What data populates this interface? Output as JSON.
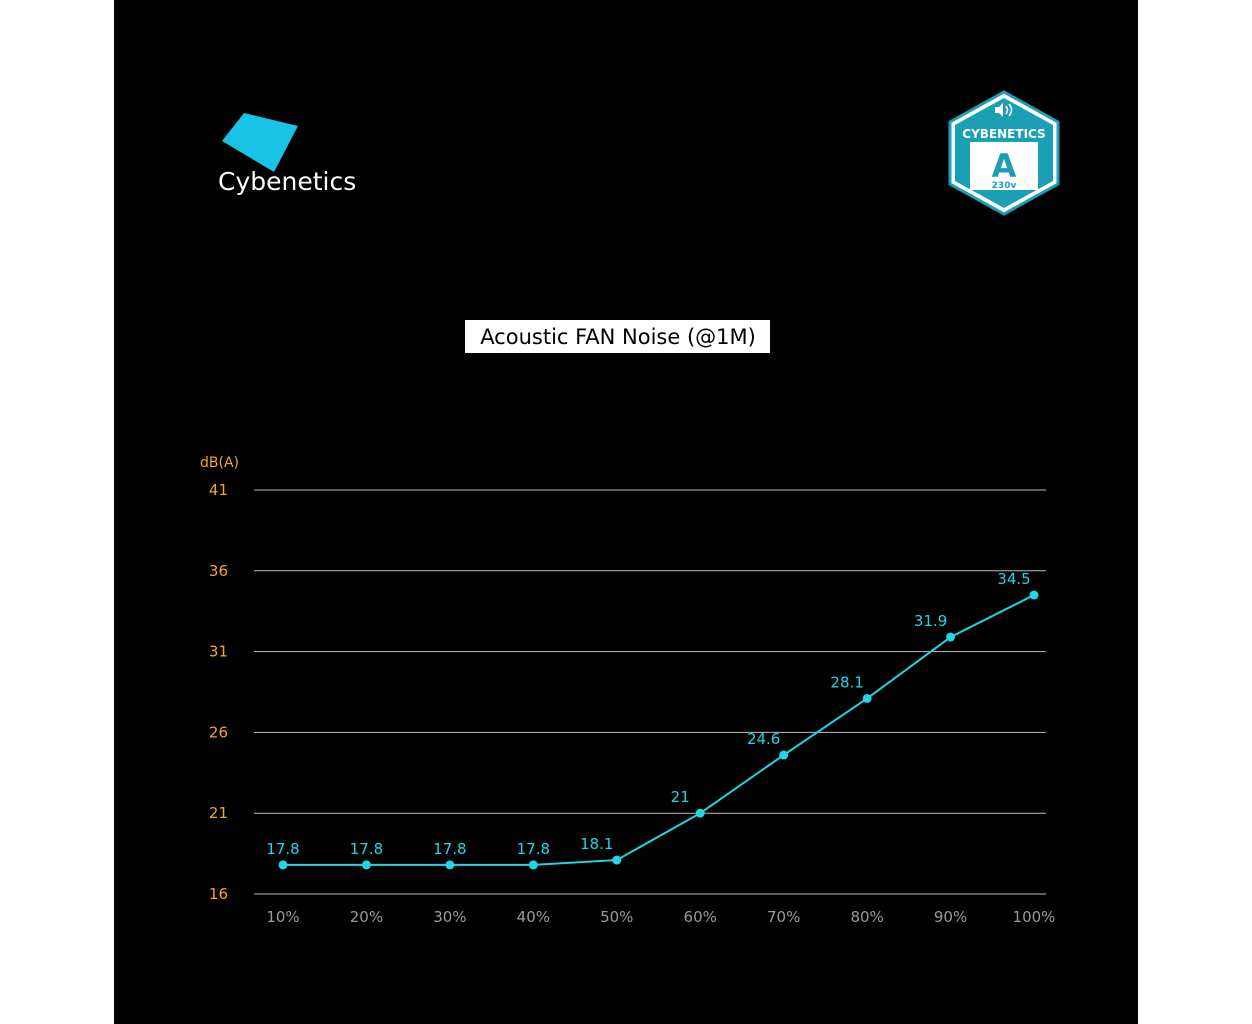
{
  "brand": {
    "name": "Cybenetics",
    "logo_color": "#19c3e6"
  },
  "badge": {
    "org": "CYBENETICS",
    "rating": "A",
    "voltage": "230v",
    "icon": "speaker-icon",
    "color": "#1a9fb5"
  },
  "chart_data": {
    "type": "line",
    "title": "Acoustic FAN Noise (@1M)",
    "ylabel": "dB(A)",
    "xlabel": "",
    "categories": [
      "10%",
      "20%",
      "30%",
      "40%",
      "50%",
      "60%",
      "70%",
      "80%",
      "90%",
      "100%"
    ],
    "values": [
      17.8,
      17.8,
      17.8,
      17.8,
      18.1,
      21,
      24.6,
      28.1,
      31.9,
      34.5
    ],
    "value_labels": [
      "17.8",
      "17.8",
      "17.8",
      "17.8",
      "18.1",
      "21",
      "24.6",
      "28.1",
      "31.9",
      "34.5"
    ],
    "yticks": [
      16,
      21,
      26,
      31,
      36,
      41
    ],
    "ylim": [
      16,
      41
    ],
    "grid": true,
    "colors": {
      "line": "#1fd6e6",
      "axis_text": "#f5a623",
      "x_text": "#9a9a9a",
      "grid": "#bdbdbd",
      "title_bg": "#ffffff",
      "title_text": "#000000"
    }
  }
}
